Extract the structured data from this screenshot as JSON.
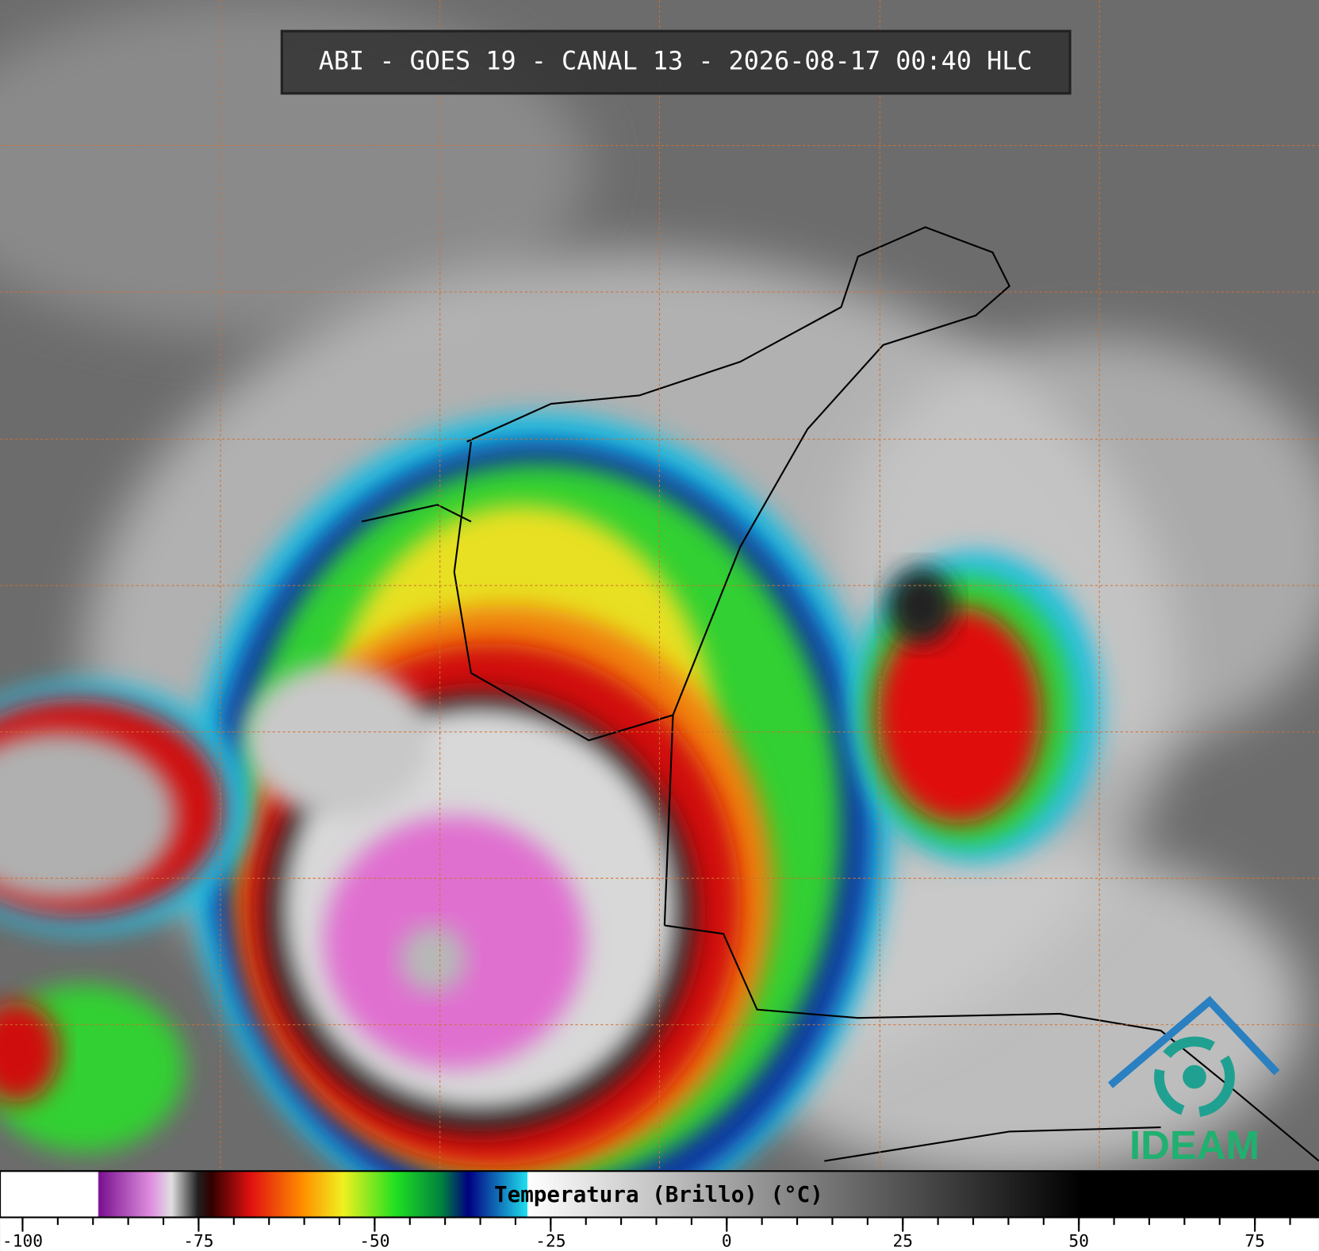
{
  "title": "ABI - GOES 19 - CANAL 13 - 2026-08-17 00:40 HLC",
  "colorbar": {
    "label": "Temperatura (Brillo) (°C)",
    "xlim": [
      -103.2,
      84.1
    ],
    "ticks": [
      -100,
      -75,
      -50,
      -25,
      0,
      25,
      50,
      75
    ]
  },
  "logo": "IDEAM"
}
